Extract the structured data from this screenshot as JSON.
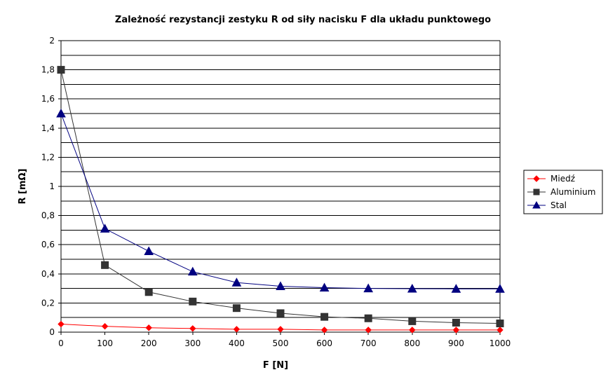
{
  "chart_data": {
    "type": "line",
    "title": "Zależność rezystancji zestyku R od siły nacisku F dla układu punktowego",
    "xlabel": "F [N]",
    "ylabel": "R [mΩ]",
    "x": [
      0,
      100,
      200,
      300,
      400,
      500,
      600,
      700,
      800,
      900,
      1000
    ],
    "x_ticks": [
      "0",
      "100",
      "200",
      "300",
      "400",
      "500",
      "600",
      "700",
      "800",
      "900",
      "1000"
    ],
    "y_ticks": [
      "0",
      "0,2",
      "0,4",
      "0,6",
      "0,8",
      "1",
      "1,2",
      "1,4",
      "1,6",
      "1,8",
      "2"
    ],
    "xlim": [
      0,
      1000
    ],
    "ylim": [
      0,
      2
    ],
    "grid": "horizontal",
    "legend_position": "right",
    "series": [
      {
        "name": "Miedź",
        "color": "#ff0000",
        "marker": "diamond",
        "values": [
          0.055,
          0.04,
          0.03,
          0.025,
          0.02,
          0.02,
          0.015,
          0.015,
          0.015,
          0.015,
          0.015
        ]
      },
      {
        "name": "Aluminium",
        "color": "#333333",
        "marker": "square",
        "values": [
          1.8,
          0.46,
          0.275,
          0.21,
          0.165,
          0.13,
          0.105,
          0.095,
          0.075,
          0.065,
          0.06
        ]
      },
      {
        "name": "Stal",
        "color": "#000080",
        "marker": "triangle",
        "values": [
          1.5,
          0.71,
          0.555,
          0.415,
          0.34,
          0.315,
          0.305,
          0.3,
          0.298,
          0.297,
          0.297
        ]
      }
    ]
  }
}
